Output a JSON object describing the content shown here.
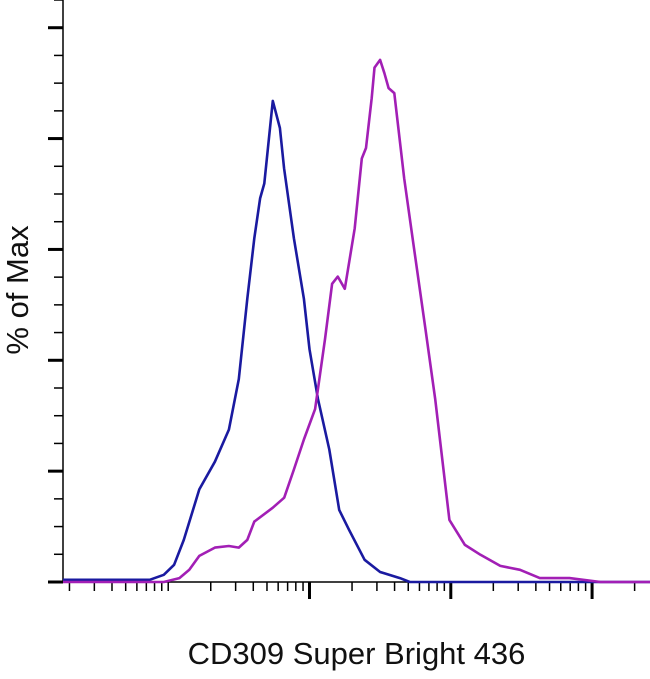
{
  "chart_data": {
    "type": "line",
    "title": "",
    "xlabel": "CD309 Super Bright 436",
    "ylabel": "% of Max",
    "x_scale": "log",
    "xlim": [
      18,
      257000
    ],
    "ylim": [
      0,
      105
    ],
    "y_major_ticks": [
      0,
      20,
      40,
      60,
      80,
      100
    ],
    "x_major_ticks": [
      1000,
      10000,
      100000
    ],
    "grid": false,
    "legend": "none",
    "series": [
      {
        "color": "#1a1aa0",
        "x": [
          18,
          74,
          93,
          110,
          129,
          166,
          214,
          269,
          316,
          363,
          407,
          447,
          479,
          525,
          550,
          617,
          661,
          776,
          912,
          1000,
          1148,
          1380,
          1622,
          1905,
          2455,
          3162,
          4365,
          5129,
          257000
        ],
        "y": [
          0.4,
          0.4,
          1.3,
          3.1,
          7.6,
          16.7,
          21.7,
          27.5,
          36.6,
          51.1,
          62,
          69.2,
          71.9,
          81.9,
          86.8,
          81.9,
          74.6,
          62,
          51.1,
          42,
          33,
          23.9,
          13,
          9.4,
          4,
          1.8,
          0.7,
          0,
          0
        ]
      },
      {
        "color": "#a21fb5",
        "x": [
          18,
          93,
          120,
          141,
          166,
          214,
          269,
          316,
          363,
          407,
          550,
          662,
          776,
          912,
          1096,
          1288,
          1445,
          1585,
          1778,
          2089,
          2344,
          2512,
          2754,
          2884,
          3162,
          3388,
          3631,
          3981,
          4677,
          5495,
          6607,
          7762,
          9772,
          12590,
          16220,
          22390,
          30900,
          42660,
          69180,
          114800,
          257000
        ],
        "y": [
          0,
          0,
          0.7,
          2.2,
          4.7,
          6.2,
          6.5,
          6.2,
          7.6,
          10.9,
          13.4,
          15.2,
          20.3,
          25.7,
          31.2,
          43.8,
          53.8,
          55.1,
          52.9,
          63.8,
          76.4,
          78.3,
          87.3,
          92.8,
          94.2,
          91.8,
          89.1,
          88.2,
          72.8,
          60.1,
          45.7,
          33,
          11.2,
          6.7,
          4.9,
          2.9,
          2.2,
          0.7,
          0.7,
          0,
          0
        ]
      }
    ]
  }
}
